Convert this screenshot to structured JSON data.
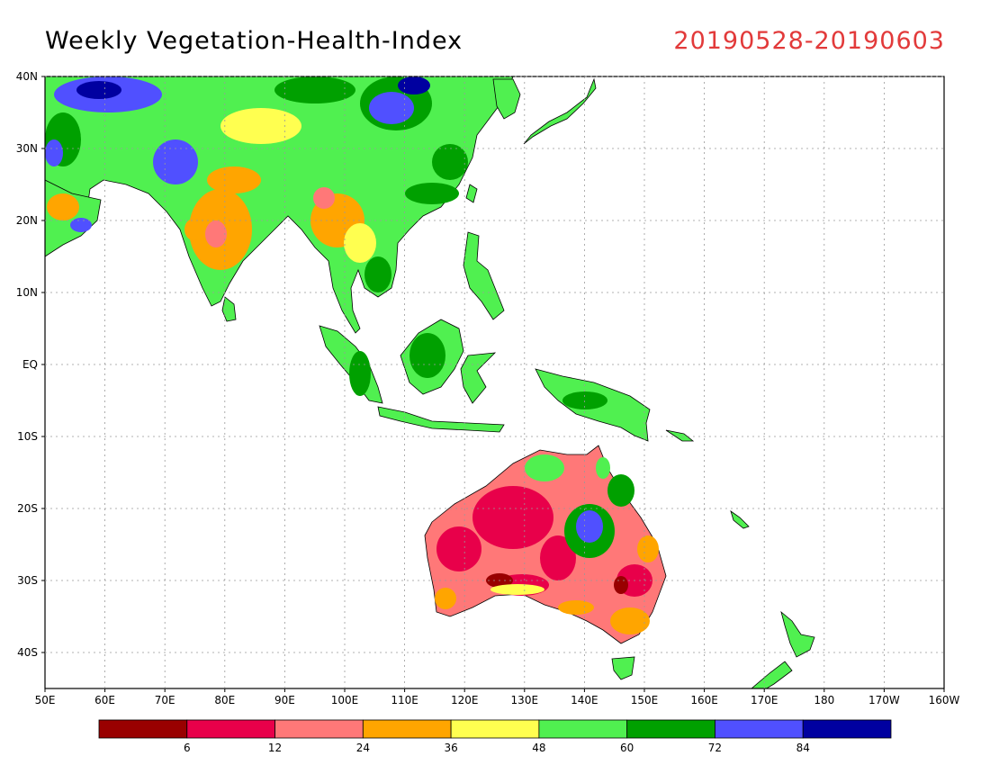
{
  "title": "Weekly Vegetation-Health-Index",
  "date_range": "20190528-20190603",
  "axes": {
    "lat_labels": [
      "40N",
      "30N",
      "20N",
      "10N",
      "EQ",
      "10S",
      "20S",
      "30S",
      "40S"
    ],
    "lat_values": [
      40,
      30,
      20,
      10,
      0,
      -10,
      -20,
      -30,
      -40
    ],
    "lon_labels": [
      "50E",
      "60E",
      "70E",
      "80E",
      "90E",
      "100E",
      "110E",
      "120E",
      "130E",
      "140E",
      "150E",
      "160E",
      "170E",
      "180",
      "170W",
      "160W"
    ],
    "lon_values": [
      50,
      60,
      70,
      80,
      90,
      100,
      110,
      120,
      130,
      140,
      150,
      160,
      170,
      180,
      190,
      200
    ],
    "lat_range": [
      -45,
      40
    ],
    "lon_range": [
      50,
      200
    ],
    "grid": true
  },
  "colorbar": {
    "colors": [
      "#990000",
      "#e8004a",
      "#ff7878",
      "#ffa500",
      "#ffff50",
      "#50f050",
      "#00a000",
      "#5050ff",
      "#0000a0"
    ],
    "tick_labels": [
      "6",
      "12",
      "24",
      "36",
      "48",
      "60",
      "72",
      "84"
    ]
  }
}
